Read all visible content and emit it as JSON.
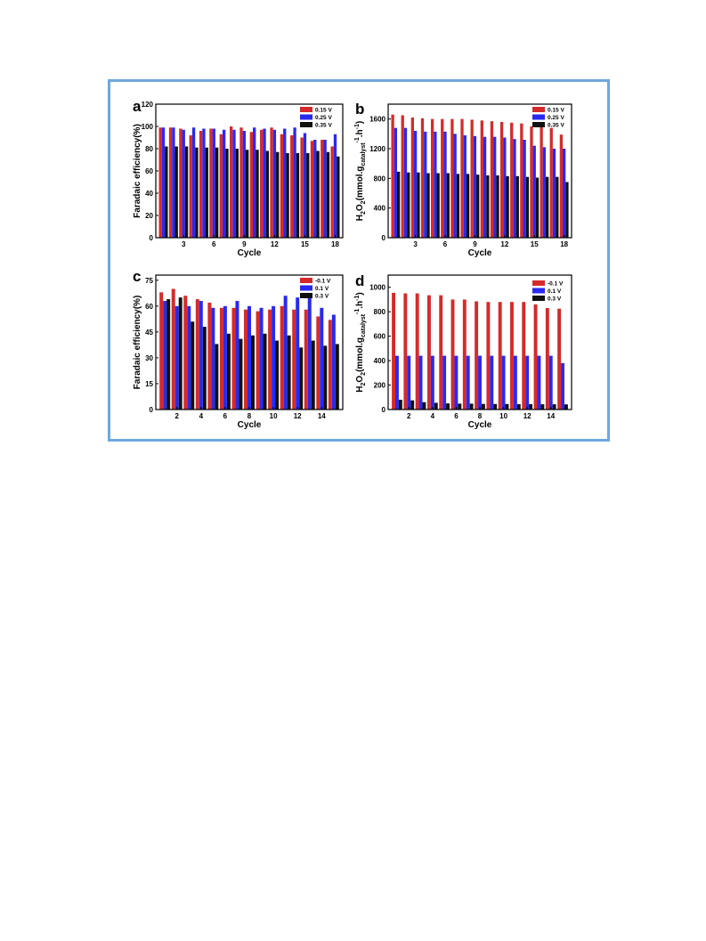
{
  "colors": {
    "series1": "#d62a2a",
    "series2": "#2929f0",
    "series3": "#111111"
  },
  "chart_data": [
    {
      "panel": "a",
      "type": "bar",
      "xlabel": "Cycle",
      "ylabel": "Faradaic efficiency(%)",
      "ylim": [
        0,
        120
      ],
      "yticks": [
        0,
        20,
        40,
        60,
        80,
        100,
        120
      ],
      "xticks": [
        3,
        6,
        9,
        12,
        15,
        18
      ],
      "categories": [
        1,
        2,
        3,
        4,
        5,
        6,
        7,
        8,
        9,
        10,
        11,
        12,
        13,
        14,
        15,
        16,
        17,
        18
      ],
      "legend_position": "top-right",
      "series": [
        {
          "name": "0.15 V",
          "values": [
            99,
            99,
            98,
            92,
            96,
            98,
            93,
            100,
            99,
            95,
            97,
            99,
            93,
            92,
            90,
            87,
            88,
            82
          ]
        },
        {
          "name": "0.25 V",
          "values": [
            99,
            99,
            97,
            99,
            98,
            98,
            97,
            97,
            96,
            99,
            98,
            97,
            98,
            99,
            94,
            88,
            88,
            93
          ]
        },
        {
          "name": "0.35 V",
          "values": [
            82,
            82,
            82,
            81,
            81,
            81,
            80,
            80,
            79,
            79,
            78,
            77,
            76,
            76,
            76,
            78,
            77,
            73
          ]
        }
      ]
    },
    {
      "panel": "b",
      "type": "bar",
      "xlabel": "Cycle",
      "ylabel": "H2O2(mmol.gcatalyst-1.h-1)",
      "ylabel_parts": {
        "main": "H",
        "sub1": "2",
        "mid1": "O",
        "sub2": "2",
        "mid2": "(mmol.g",
        "sub3": "catalyst",
        "sup1": "-1",
        "mid3": ".h",
        "sup2": "-1",
        "end": ")"
      },
      "ylim": [
        0,
        1800
      ],
      "yticks": [
        0,
        400,
        800,
        1200,
        1600
      ],
      "xticks": [
        3,
        6,
        9,
        12,
        15,
        18
      ],
      "categories": [
        1,
        2,
        3,
        4,
        5,
        6,
        7,
        8,
        9,
        10,
        11,
        12,
        13,
        14,
        15,
        16,
        17,
        18
      ],
      "legend_position": "top-right",
      "series": [
        {
          "name": "0.15 V",
          "values": [
            1660,
            1650,
            1620,
            1610,
            1600,
            1600,
            1600,
            1600,
            1590,
            1580,
            1570,
            1560,
            1550,
            1540,
            1500,
            1490,
            1480,
            1390
          ]
        },
        {
          "name": "0.25 V",
          "values": [
            1480,
            1480,
            1440,
            1430,
            1430,
            1430,
            1400,
            1380,
            1370,
            1360,
            1360,
            1350,
            1330,
            1320,
            1240,
            1220,
            1200,
            1200
          ]
        },
        {
          "name": "0.35 V",
          "values": [
            890,
            880,
            880,
            870,
            870,
            870,
            860,
            860,
            850,
            840,
            840,
            830,
            830,
            820,
            810,
            820,
            820,
            750
          ]
        }
      ]
    },
    {
      "panel": "c",
      "type": "bar",
      "xlabel": "Cycle",
      "ylabel": "Faradaic efficiency(%)",
      "ylim": [
        0,
        78
      ],
      "yticks": [
        0,
        15,
        30,
        45,
        60,
        75
      ],
      "xticks": [
        2,
        4,
        6,
        8,
        10,
        12,
        14
      ],
      "categories": [
        1,
        2,
        3,
        4,
        5,
        6,
        7,
        8,
        9,
        10,
        11,
        12,
        13,
        14,
        15
      ],
      "legend_position": "top-right",
      "series": [
        {
          "name": "-0.1 V",
          "values": [
            68,
            70,
            66,
            64,
            62,
            59,
            59,
            58,
            57,
            58,
            60,
            58,
            58,
            54,
            52
          ]
        },
        {
          "name": "0.1 V",
          "values": [
            63,
            60,
            60,
            63,
            59,
            60,
            63,
            60,
            59,
            60,
            66,
            65,
            66,
            59,
            55
          ]
        },
        {
          "name": "0.3 V",
          "values": [
            64,
            65,
            51,
            48,
            38,
            44,
            41,
            43,
            44,
            40,
            43,
            36,
            40,
            37,
            38
          ]
        }
      ]
    },
    {
      "panel": "d",
      "type": "bar",
      "xlabel": "Cycle",
      "ylabel": "H2O2(mmol.gcatalyst-1.h-1)",
      "ylabel_parts": {
        "main": "H",
        "sub1": "2",
        "mid1": "O",
        "sub2": "2",
        "mid2": "(mmol.g",
        "sub3": "catalyst",
        "sup1": "-1",
        "mid3": ".h",
        "sup2": "-1",
        "end": ")"
      },
      "ylim": [
        0,
        1100
      ],
      "yticks": [
        0,
        200,
        400,
        600,
        800,
        1000
      ],
      "xticks": [
        2,
        4,
        6,
        8,
        10,
        12,
        14
      ],
      "categories": [
        1,
        2,
        3,
        4,
        5,
        6,
        7,
        8,
        9,
        10,
        11,
        12,
        13,
        14,
        15
      ],
      "legend_position": "top-right",
      "series": [
        {
          "name": "-0.1 V",
          "values": [
            955,
            950,
            950,
            935,
            935,
            900,
            900,
            885,
            880,
            880,
            880,
            880,
            860,
            830,
            825
          ]
        },
        {
          "name": "0.1 V",
          "values": [
            440,
            440,
            440,
            440,
            440,
            440,
            440,
            440,
            440,
            440,
            440,
            440,
            440,
            440,
            380
          ]
        },
        {
          "name": "0.3 V",
          "values": [
            80,
            75,
            60,
            55,
            50,
            48,
            48,
            46,
            45,
            45,
            44,
            44,
            43,
            43,
            42
          ]
        }
      ]
    }
  ]
}
